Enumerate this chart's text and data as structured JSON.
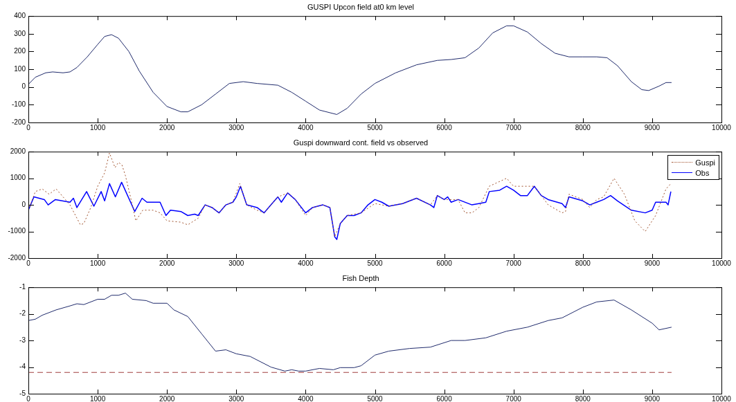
{
  "chart_data": [
    {
      "type": "line",
      "title": "GUSPI Upcon field at0 km level",
      "xlim": [
        0,
        10000
      ],
      "xticks": [
        0,
        1000,
        2000,
        3000,
        4000,
        5000,
        6000,
        7000,
        8000,
        9000,
        10000
      ],
      "ylim": [
        -200,
        400
      ],
      "yticks": [
        -200,
        -100,
        0,
        100,
        200,
        300,
        400
      ],
      "grid": false,
      "legend": false,
      "marker": "none",
      "series": [
        {
          "color": "#1f2a6b",
          "line_style": "solid",
          "x": [
            0,
            100,
            250,
            350,
            500,
            600,
            700,
            850,
            1000,
            1100,
            1200,
            1300,
            1450,
            1600,
            1800,
            2000,
            2200,
            2300,
            2500,
            2700,
            2900,
            3100,
            3300,
            3600,
            3800,
            4000,
            4200,
            4450,
            4600,
            4800,
            5000,
            5300,
            5600,
            5900,
            6100,
            6300,
            6500,
            6700,
            6900,
            7000,
            7200,
            7400,
            7600,
            7800,
            8000,
            8200,
            8350,
            8500,
            8700,
            8850,
            8950,
            9100,
            9200,
            9280
          ],
          "values": [
            15,
            55,
            80,
            85,
            80,
            85,
            110,
            170,
            240,
            285,
            295,
            275,
            200,
            90,
            -30,
            -110,
            -140,
            -140,
            -100,
            -40,
            20,
            30,
            20,
            10,
            -30,
            -80,
            -130,
            -155,
            -120,
            -40,
            20,
            80,
            125,
            150,
            155,
            165,
            220,
            305,
            345,
            345,
            310,
            245,
            190,
            170,
            170,
            170,
            165,
            120,
            30,
            -15,
            -20,
            5,
            25,
            25
          ]
        }
      ]
    },
    {
      "type": "line",
      "title": "Guspi downward cont. field vs observed",
      "xlim": [
        0,
        10000
      ],
      "xticks": [
        0,
        1000,
        2000,
        3000,
        4000,
        5000,
        6000,
        7000,
        8000,
        9000,
        10000
      ],
      "ylim": [
        -2000,
        2000
      ],
      "yticks": [
        -2000,
        -1000,
        0,
        1000,
        2000
      ],
      "grid": false,
      "legend": "top right",
      "marker": "none",
      "series": [
        {
          "name": "Guspi",
          "color": "#a0522d",
          "line_style": "dotted",
          "x": [
            0,
            100,
            200,
            300,
            400,
            500,
            600,
            700,
            750,
            800,
            900,
            1000,
            1100,
            1170,
            1250,
            1300,
            1350,
            1400,
            1500,
            1550,
            1650,
            1800,
            1900,
            2000,
            2200,
            2300,
            2450,
            2550,
            2650,
            2750,
            2850,
            2950,
            3050,
            3150,
            3300,
            3400,
            3500,
            3600,
            3750,
            3850,
            4000,
            4100,
            4250,
            4350,
            4420,
            4500,
            4600,
            4800,
            5000,
            5200,
            5400,
            5600,
            5800,
            5900,
            6000,
            6200,
            6300,
            6400,
            6500,
            6650,
            6900,
            7000,
            7300,
            7500,
            7700,
            7750,
            7800,
            8000,
            8100,
            8200,
            8300,
            8450,
            8600,
            8750,
            8900,
            9050,
            9200,
            9270
          ],
          "values": [
            -200,
            500,
            600,
            400,
            600,
            300,
            0,
            -500,
            -750,
            -700,
            -100,
            700,
            1200,
            1950,
            1400,
            1600,
            1500,
            1100,
            0,
            -600,
            -200,
            -200,
            -300,
            -600,
            -650,
            -750,
            -500,
            0,
            -100,
            -300,
            0,
            100,
            800,
            0,
            -200,
            -300,
            0,
            300,
            450,
            200,
            -400,
            -100,
            0,
            -100,
            -1200,
            -700,
            -400,
            -300,
            50,
            -50,
            50,
            250,
            0,
            350,
            200,
            200,
            -300,
            -300,
            -100,
            700,
            1000,
            700,
            700,
            0,
            -300,
            -250,
            400,
            200,
            -100,
            200,
            300,
            1000,
            400,
            -600,
            -1000,
            -400,
            600,
            800
          ]
        },
        {
          "name": "Obs",
          "color": "#0000ff",
          "line_style": "solid",
          "x": [
            0,
            80,
            230,
            285,
            390,
            600,
            650,
            700,
            840,
            945,
            1050,
            1100,
            1170,
            1255,
            1345,
            1535,
            1640,
            1710,
            1810,
            1900,
            1985,
            2050,
            2200,
            2300,
            2400,
            2450,
            2550,
            2650,
            2750,
            2850,
            2950,
            3000,
            3060,
            3150,
            3300,
            3400,
            3500,
            3600,
            3650,
            3740,
            3850,
            4000,
            4100,
            4250,
            4350,
            4420,
            4450,
            4500,
            4600,
            4700,
            4800,
            4900,
            5000,
            5100,
            5200,
            5400,
            5600,
            5800,
            5850,
            5900,
            6000,
            6050,
            6100,
            6200,
            6400,
            6500,
            6600,
            6650,
            6800,
            6900,
            7000,
            7100,
            7200,
            7300,
            7400,
            7500,
            7700,
            7750,
            7800,
            8000,
            8100,
            8200,
            8300,
            8400,
            8500,
            8700,
            8900,
            9000,
            9050,
            9200,
            9230,
            9270
          ],
          "values": [
            -200,
            300,
            200,
            0,
            200,
            100,
            250,
            -100,
            500,
            -50,
            500,
            150,
            800,
            300,
            850,
            -250,
            250,
            100,
            100,
            100,
            -400,
            -200,
            -250,
            -400,
            -350,
            -400,
            0,
            -100,
            -300,
            0,
            100,
            300,
            700,
            0,
            -100,
            -300,
            0,
            300,
            100,
            450,
            200,
            -300,
            -100,
            0,
            -100,
            -1200,
            -1300,
            -700,
            -400,
            -400,
            -300,
            0,
            200,
            100,
            -50,
            50,
            250,
            0,
            -100,
            350,
            200,
            300,
            100,
            200,
            0,
            50,
            100,
            500,
            550,
            700,
            550,
            350,
            350,
            700,
            350,
            200,
            50,
            -100,
            300,
            150,
            0,
            100,
            200,
            350,
            150,
            -200,
            -300,
            -200,
            100,
            100,
            0,
            500
          ]
        }
      ]
    },
    {
      "type": "line",
      "title": "Fish Depth",
      "xlim": [
        0,
        10000
      ],
      "xticks": [
        0,
        1000,
        2000,
        3000,
        4000,
        5000,
        6000,
        7000,
        8000,
        9000,
        10000
      ],
      "ylim": [
        -5,
        -1
      ],
      "yticks": [
        -5,
        -4,
        -3,
        -2,
        -1
      ],
      "grid": false,
      "legend": false,
      "marker": "none",
      "series": [
        {
          "color": "#1f2a6b",
          "line_style": "solid",
          "x": [
            0,
            100,
            200,
            400,
            600,
            700,
            800,
            1000,
            1100,
            1200,
            1300,
            1400,
            1500,
            1700,
            1800,
            2000,
            2100,
            2300,
            2500,
            2700,
            2850,
            3000,
            3200,
            3500,
            3700,
            3800,
            3900,
            4000,
            4200,
            4400,
            4500,
            4700,
            4800,
            5000,
            5200,
            5500,
            5800,
            6100,
            6300,
            6600,
            6900,
            7200,
            7500,
            7700,
            8000,
            8200,
            8450,
            8700,
            9000,
            9100,
            9280
          ],
          "values": [
            -2.25,
            -2.2,
            -2.05,
            -1.85,
            -1.7,
            -1.62,
            -1.65,
            -1.45,
            -1.45,
            -1.3,
            -1.3,
            -1.22,
            -1.45,
            -1.5,
            -1.6,
            -1.6,
            -1.85,
            -2.1,
            -2.75,
            -3.4,
            -3.35,
            -3.5,
            -3.6,
            -4.0,
            -4.15,
            -4.1,
            -4.15,
            -4.15,
            -4.05,
            -4.1,
            -4.02,
            -4.02,
            -3.95,
            -3.55,
            -3.4,
            -3.3,
            -3.25,
            -3.0,
            -3.0,
            -2.9,
            -2.65,
            -2.5,
            -2.25,
            -2.15,
            -1.75,
            -1.55,
            -1.48,
            -1.85,
            -2.35,
            -2.6,
            -2.5
          ]
        },
        {
          "color": "#a03c3c",
          "line_style": "dashed",
          "x": [
            0,
            9280
          ],
          "values": [
            -4.2,
            -4.2
          ]
        }
      ]
    }
  ]
}
